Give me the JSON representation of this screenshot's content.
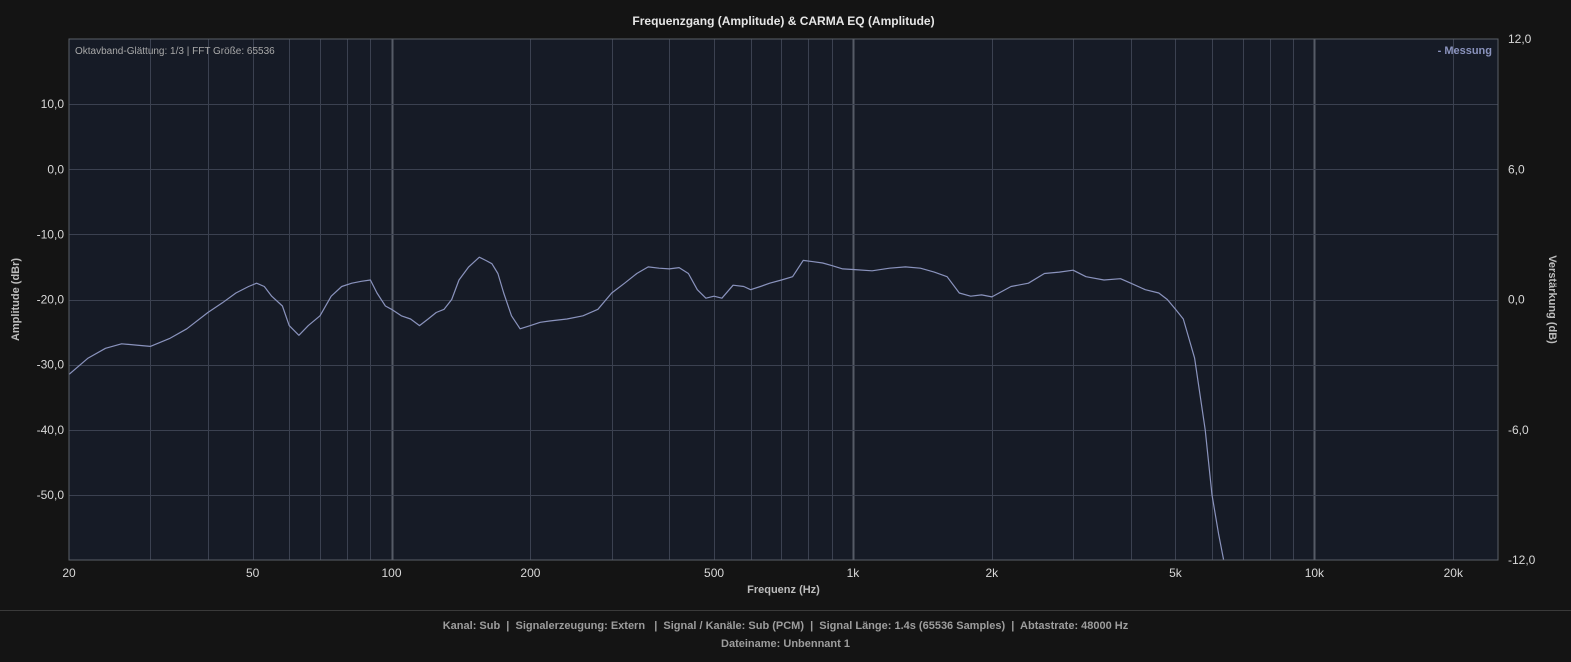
{
  "chart_data": {
    "type": "line",
    "title": "Frequenzgang (Amplitude) & CARMA EQ (Amplitude)",
    "xlabel": "Frequenz (Hz)",
    "ylabel": "Amplitude (dBr)",
    "y2label": "Verstärkung (dB)",
    "x_scale": "log",
    "xlim": [
      20,
      25000
    ],
    "ylim": [
      -60,
      20
    ],
    "y2lim": [
      -12,
      12
    ],
    "x_ticks": [
      20,
      50,
      100,
      200,
      500,
      1000,
      2000,
      5000,
      10000,
      20000
    ],
    "x_tick_labels": [
      "20",
      "50",
      "100",
      "200",
      "500",
      "1k",
      "2k",
      "5k",
      "10k",
      "20k"
    ],
    "y_ticks": [
      10,
      0,
      -10,
      -20,
      -30,
      -40,
      -50
    ],
    "y_tick_labels": [
      "10,0",
      "0,0",
      "-10,0",
      "-20,0",
      "-30,0",
      "-40,0",
      "-50,0"
    ],
    "y2_ticks": [
      12,
      6,
      0,
      -6,
      -12
    ],
    "y2_tick_labels": [
      "12,0",
      "6,0",
      "0,0",
      "-6,0",
      "-12,0"
    ],
    "annotation": "Oktavband-Glättung: 1/3 | FFT Größe: 65536",
    "legend_position": "top-right",
    "grid": true,
    "series": [
      {
        "name": "- Messung",
        "color": "#8a93bd",
        "x": [
          20,
          22,
          24,
          26,
          28,
          30,
          33,
          36,
          40,
          43,
          46,
          49,
          51,
          53,
          55,
          58,
          60,
          63,
          66,
          70,
          74,
          78,
          82,
          86,
          90,
          93,
          97,
          100,
          105,
          110,
          115,
          120,
          125,
          130,
          135,
          140,
          147,
          155,
          160,
          165,
          170,
          175,
          182,
          190,
          200,
          210,
          220,
          240,
          260,
          280,
          300,
          320,
          340,
          360,
          380,
          400,
          420,
          440,
          460,
          480,
          500,
          520,
          550,
          580,
          600,
          630,
          660,
          700,
          740,
          780,
          820,
          860,
          900,
          950,
          1000,
          1100,
          1200,
          1300,
          1400,
          1500,
          1600,
          1700,
          1800,
          1900,
          2000,
          2200,
          2400,
          2600,
          2800,
          3000,
          3200,
          3500,
          3800,
          4000,
          4300,
          4600,
          4800,
          5000,
          5200,
          5500,
          5800,
          6000,
          6200,
          6400
        ],
        "y": [
          -31.5,
          -29,
          -27.5,
          -26.8,
          -27.0,
          -27.2,
          -26.0,
          -24.5,
          -22,
          -20.5,
          -19,
          -18,
          -17.5,
          -18,
          -19.5,
          -21,
          -24,
          -25.5,
          -24,
          -22.5,
          -19.5,
          -18,
          -17.5,
          -17.2,
          -17,
          -19,
          -21,
          -21.5,
          -22.5,
          -23,
          -24,
          -23,
          -22,
          -21.5,
          -20,
          -17,
          -15,
          -13.5,
          -14,
          -14.5,
          -16,
          -19,
          -22.5,
          -24.5,
          -24,
          -23.5,
          -23.3,
          -23,
          -22.5,
          -21.5,
          -19,
          -17.5,
          -16,
          -15,
          -15.2,
          -15.3,
          -15.1,
          -16,
          -18.5,
          -19.8,
          -19.5,
          -19.8,
          -17.8,
          -18,
          -18.5,
          -18,
          -17.5,
          -17,
          -16.5,
          -14,
          -14.2,
          -14.4,
          -14.8,
          -15.3,
          -15.4,
          -15.6,
          -15.2,
          -15.0,
          -15.2,
          -15.8,
          -16.5,
          -19,
          -19.5,
          -19.3,
          -19.6,
          -18.0,
          -17.5,
          -16,
          -15.8,
          -15.5,
          -16.5,
          -17,
          -16.8,
          -17.5,
          -18.5,
          -19,
          -20,
          -21.5,
          -23,
          -29,
          -40,
          -50,
          -56,
          -61
        ]
      }
    ]
  },
  "footer": {
    "line1": "Kanal: Sub  |  Signalerzeugung: Extern   |  Signal / Kanäle: Sub (PCM)  |  Signal Länge: 1.4s (65536 Samples)  |  Abtastrate: 48000 Hz",
    "line2": "Dateiname: Unbennant 1"
  },
  "colors": {
    "background": "#141414",
    "plot_background": "#161b26",
    "grid": "#3b4150",
    "grid_major": "#555b66",
    "line": "#8a93bd",
    "legend": "#8a93bd"
  }
}
